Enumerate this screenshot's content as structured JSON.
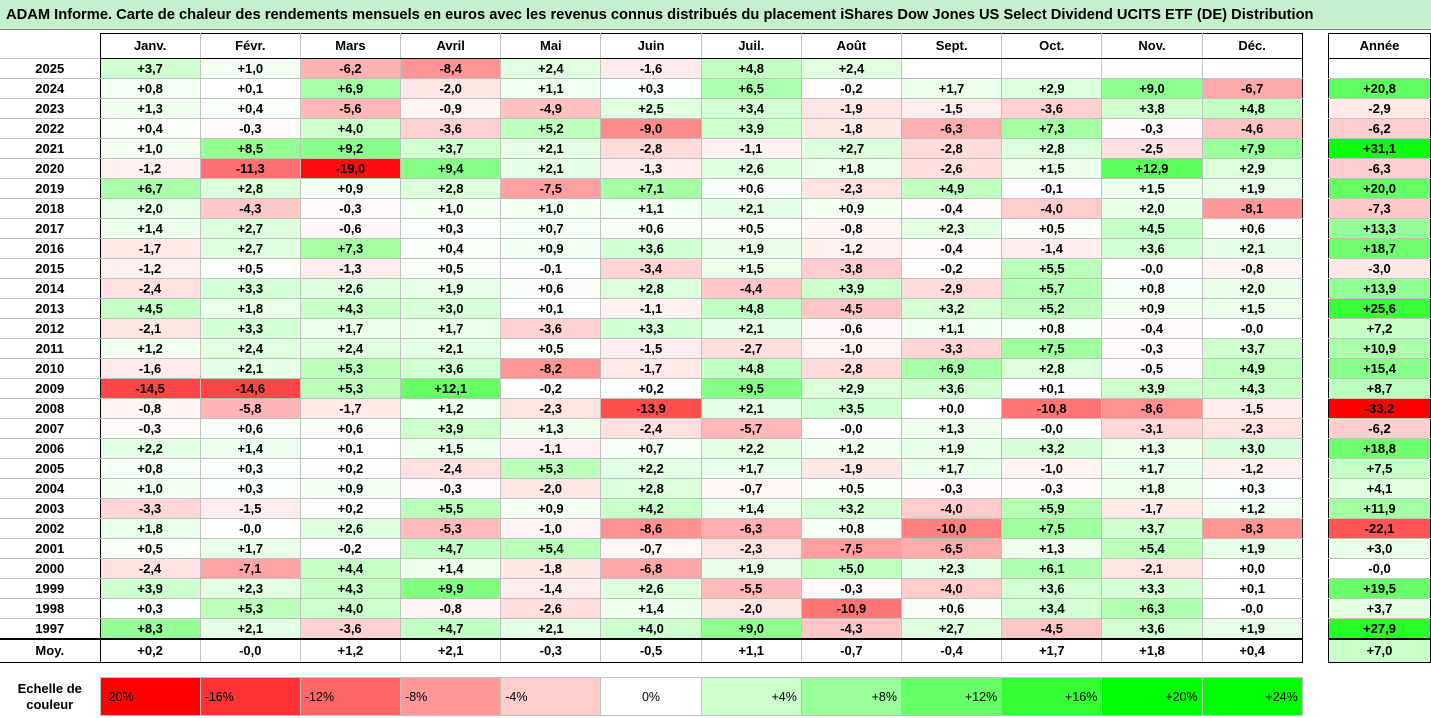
{
  "title": "ADAM Informe. Carte de chaleur des rendements mensuels en euros avec les revenus connus distribués du placement iShares Dow Jones US Select Dividend UCITS ETF (DE) Distribution",
  "months": [
    "Janv.",
    "Févr.",
    "Mars",
    "Avril",
    "Mai",
    "Juin",
    "Juil.",
    "Août",
    "Sept.",
    "Oct.",
    "Nov.",
    "Déc."
  ],
  "year_header": "Année",
  "average_label": "Moy.",
  "rows": [
    {
      "year": "2025",
      "m": [
        "+3,7",
        "+1,0",
        "-6,2",
        "-8,4",
        "+2,4",
        "-1,6",
        "+4,8",
        "+2,4",
        "",
        "",
        "",
        ""
      ],
      "annual": ""
    },
    {
      "year": "2024",
      "m": [
        "+0,8",
        "+0,1",
        "+6,9",
        "-2,0",
        "+1,1",
        "+0,3",
        "+6,5",
        "-0,2",
        "+1,7",
        "+2,9",
        "+9,0",
        "-6,7"
      ],
      "annual": "+20,8"
    },
    {
      "year": "2023",
      "m": [
        "+1,3",
        "+0,4",
        "-5,6",
        "-0,9",
        "-4,9",
        "+2,5",
        "+3,4",
        "-1,9",
        "-1,5",
        "-3,6",
        "+3,8",
        "+4,8"
      ],
      "annual": "-2,9"
    },
    {
      "year": "2022",
      "m": [
        "+0,4",
        "-0,3",
        "+4,0",
        "-3,6",
        "+5,2",
        "-9,0",
        "+3,9",
        "-1,8",
        "-6,3",
        "+7,3",
        "-0,3",
        "-4,6"
      ],
      "annual": "-6,2"
    },
    {
      "year": "2021",
      "m": [
        "+1,0",
        "+8,5",
        "+9,2",
        "+3,7",
        "+2,1",
        "-2,8",
        "-1,1",
        "+2,7",
        "-2,8",
        "+2,8",
        "-2,5",
        "+7,9"
      ],
      "annual": "+31,1"
    },
    {
      "year": "2020",
      "m": [
        "-1,2",
        "-11,3",
        "-19,0",
        "+9,4",
        "+2,1",
        "-1,3",
        "+2,6",
        "+1,8",
        "-2,6",
        "+1,5",
        "+12,9",
        "+2,9"
      ],
      "annual": "-6,3"
    },
    {
      "year": "2019",
      "m": [
        "+6,7",
        "+2,8",
        "+0,9",
        "+2,8",
        "-7,5",
        "+7,1",
        "+0,6",
        "-2,3",
        "+4,9",
        "-0,1",
        "+1,5",
        "+1,9"
      ],
      "annual": "+20,0"
    },
    {
      "year": "2018",
      "m": [
        "+2,0",
        "-4,3",
        "-0,3",
        "+1,0",
        "+1,0",
        "+1,1",
        "+2,1",
        "+0,9",
        "-0,4",
        "-4,0",
        "+2,0",
        "-8,1"
      ],
      "annual": "-7,3"
    },
    {
      "year": "2017",
      "m": [
        "+1,4",
        "+2,7",
        "-0,6",
        "+0,3",
        "+0,7",
        "+0,6",
        "+0,5",
        "-0,8",
        "+2,3",
        "+0,5",
        "+4,5",
        "+0,6"
      ],
      "annual": "+13,3"
    },
    {
      "year": "2016",
      "m": [
        "-1,7",
        "+2,7",
        "+7,3",
        "+0,4",
        "+0,9",
        "+3,6",
        "+1,9",
        "-1,2",
        "-0,4",
        "-1,4",
        "+3,6",
        "+2,1"
      ],
      "annual": "+18,7"
    },
    {
      "year": "2015",
      "m": [
        "-1,2",
        "+0,5",
        "-1,3",
        "+0,5",
        "-0,1",
        "-3,4",
        "+1,5",
        "-3,8",
        "-0,2",
        "+5,5",
        "-0,0",
        "-0,8"
      ],
      "annual": "-3,0"
    },
    {
      "year": "2014",
      "m": [
        "-2,4",
        "+3,3",
        "+2,6",
        "+1,9",
        "+0,6",
        "+2,8",
        "-4,4",
        "+3,9",
        "-2,9",
        "+5,7",
        "+0,8",
        "+2,0"
      ],
      "annual": "+13,9"
    },
    {
      "year": "2013",
      "m": [
        "+4,5",
        "+1,8",
        "+4,3",
        "+3,0",
        "+0,1",
        "-1,1",
        "+4,8",
        "-4,5",
        "+3,2",
        "+5,2",
        "+0,9",
        "+1,5"
      ],
      "annual": "+25,6"
    },
    {
      "year": "2012",
      "m": [
        "-2,1",
        "+3,3",
        "+1,7",
        "+1,7",
        "-3,6",
        "+3,3",
        "+2,1",
        "-0,6",
        "+1,1",
        "+0,8",
        "-0,4",
        "-0,0"
      ],
      "annual": "+7,2"
    },
    {
      "year": "2011",
      "m": [
        "+1,2",
        "+2,4",
        "+2,4",
        "+2,1",
        "+0,5",
        "-1,5",
        "-2,7",
        "-1,0",
        "-3,3",
        "+7,5",
        "-0,3",
        "+3,7"
      ],
      "annual": "+10,9"
    },
    {
      "year": "2010",
      "m": [
        "-1,6",
        "+2,1",
        "+5,3",
        "+3,6",
        "-8,2",
        "-1,7",
        "+4,8",
        "-2,8",
        "+6,9",
        "+2,8",
        "-0,5",
        "+4,9"
      ],
      "annual": "+15,4"
    },
    {
      "year": "2009",
      "m": [
        "-14,5",
        "-14,6",
        "+5,3",
        "+12,1",
        "-0,2",
        "+0,2",
        "+9,5",
        "+2,9",
        "+3,6",
        "+0,1",
        "+3,9",
        "+4,3"
      ],
      "annual": "+8,7"
    },
    {
      "year": "2008",
      "m": [
        "-0,8",
        "-5,8",
        "-1,7",
        "+1,2",
        "-2,3",
        "-13,9",
        "+2,1",
        "+3,5",
        "+0,0",
        "-10,8",
        "-8,6",
        "-1,5"
      ],
      "annual": "-33,2"
    },
    {
      "year": "2007",
      "m": [
        "-0,3",
        "+0,6",
        "+0,6",
        "+3,9",
        "+1,3",
        "-2,4",
        "-5,7",
        "-0,0",
        "+1,3",
        "-0,0",
        "-3,1",
        "-2,3"
      ],
      "annual": "-6,2"
    },
    {
      "year": "2006",
      "m": [
        "+2,2",
        "+1,4",
        "+0,1",
        "+1,5",
        "-1,1",
        "+0,7",
        "+2,2",
        "+1,2",
        "+1,9",
        "+3,2",
        "+1,3",
        "+3,0"
      ],
      "annual": "+18,8"
    },
    {
      "year": "2005",
      "m": [
        "+0,8",
        "+0,3",
        "+0,2",
        "-2,4",
        "+5,3",
        "+2,2",
        "+1,7",
        "-1,9",
        "+1,7",
        "-1,0",
        "+1,7",
        "-1,2"
      ],
      "annual": "+7,5"
    },
    {
      "year": "2004",
      "m": [
        "+1,0",
        "+0,3",
        "+0,9",
        "-0,3",
        "-2,0",
        "+2,8",
        "-0,7",
        "+0,5",
        "-0,3",
        "-0,3",
        "+1,8",
        "+0,3"
      ],
      "annual": "+4,1"
    },
    {
      "year": "2003",
      "m": [
        "-3,3",
        "-1,5",
        "+0,2",
        "+5,5",
        "+0,9",
        "+4,2",
        "+1,4",
        "+3,2",
        "-4,0",
        "+5,9",
        "-1,7",
        "+1,2"
      ],
      "annual": "+11,9"
    },
    {
      "year": "2002",
      "m": [
        "+1,8",
        "-0,0",
        "+2,6",
        "-5,3",
        "-1,0",
        "-8,6",
        "-6,3",
        "+0,8",
        "-10,0",
        "+7,5",
        "+3,7",
        "-8,3"
      ],
      "annual": "-22,1"
    },
    {
      "year": "2001",
      "m": [
        "+0,5",
        "+1,7",
        "-0,2",
        "+4,7",
        "+5,4",
        "-0,7",
        "-2,3",
        "-7,5",
        "-6,5",
        "+1,3",
        "+5,4",
        "+1,9"
      ],
      "annual": "+3,0"
    },
    {
      "year": "2000",
      "m": [
        "-2,4",
        "-7,1",
        "+4,4",
        "+1,4",
        "-1,8",
        "-6,8",
        "+1,9",
        "+5,0",
        "+2,3",
        "+6,1",
        "-2,1",
        "+0,0"
      ],
      "annual": "-0,0"
    },
    {
      "year": "1999",
      "m": [
        "+3,9",
        "+2,3",
        "+4,3",
        "+9,9",
        "-1,4",
        "+2,6",
        "-5,5",
        "-0,3",
        "-4,0",
        "+3,6",
        "+3,3",
        "+0,1"
      ],
      "annual": "+19,5"
    },
    {
      "year": "1998",
      "m": [
        "+0,3",
        "+5,3",
        "+4,0",
        "-0,8",
        "-2,6",
        "+1,4",
        "-2,0",
        "-10,9",
        "+0,6",
        "+3,4",
        "+6,3",
        "-0,0"
      ],
      "annual": "+3,7"
    },
    {
      "year": "1997",
      "m": [
        "+8,3",
        "+2,1",
        "-3,6",
        "+4,7",
        "+2,1",
        "+4,0",
        "+9,0",
        "-4,3",
        "+2,7",
        "-4,5",
        "+3,6",
        "+1,9"
      ],
      "annual": "+27,9"
    }
  ],
  "averages": [
    "+0,2",
    "-0,0",
    "+1,2",
    "+2,1",
    "-0,3",
    "-0,5",
    "+1,1",
    "-0,7",
    "-0,4",
    "+1,7",
    "+1,8",
    "+0,4"
  ],
  "annual_average": "+7,0",
  "scale": {
    "label": "Echelle de couleur",
    "steps": [
      {
        "text": "-20%",
        "color": "#ff0000",
        "kind": "neg"
      },
      {
        "text": "-16%",
        "color": "#ff3333",
        "kind": "neg"
      },
      {
        "text": "-12%",
        "color": "#ff6666",
        "kind": "neg"
      },
      {
        "text": "-8%",
        "color": "#ff9999",
        "kind": "neg"
      },
      {
        "text": "-4%",
        "color": "#ffcccc",
        "kind": "neg"
      },
      {
        "text": "0%",
        "color": "#ffffff",
        "kind": "zero"
      },
      {
        "text": "+4%",
        "color": "#ccffcc",
        "kind": "pos"
      },
      {
        "text": "+8%",
        "color": "#99ff99",
        "kind": "pos"
      },
      {
        "text": "+12%",
        "color": "#66ff66",
        "kind": "pos"
      },
      {
        "text": "+16%",
        "color": "#33ff33",
        "kind": "pos"
      },
      {
        "text": "+20%",
        "color": "#00ff00",
        "kind": "pos"
      },
      {
        "text": "+24%",
        "color": "#00ff00",
        "kind": "pos"
      }
    ]
  },
  "colors": {
    "title_bg": "#c6efce",
    "grid": "#c0c0c0",
    "negative_max": "#ff0000",
    "positive_max": "#00ff00"
  }
}
